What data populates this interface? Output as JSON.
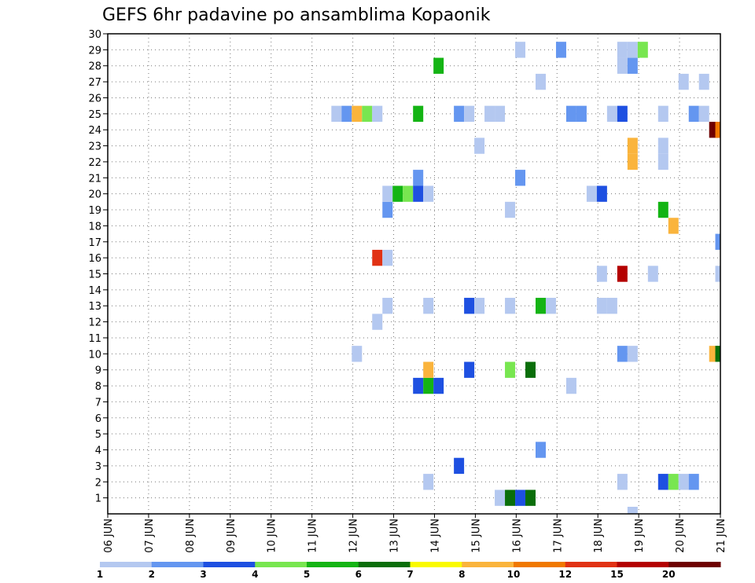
{
  "chart_data": {
    "type": "heatmap",
    "title": "GEFS 6hr padavine po ansamblima Kopaonik",
    "xlabel": "",
    "ylabel": "",
    "x_tick_labels": [
      "06 JUN",
      "07 JUN",
      "08 JUN",
      "09 JUN",
      "10 JUN",
      "11 JUN",
      "12 JUN",
      "13 JUN",
      "14 JUN",
      "15 JUN",
      "16 JUN",
      "17 JUN",
      "18 JUN",
      "19 JUN",
      "20 JUN",
      "21 JUN"
    ],
    "y_tick_labels": [
      "1",
      "2",
      "3",
      "4",
      "5",
      "6",
      "7",
      "8",
      "9",
      "10",
      "11",
      "12",
      "13",
      "14",
      "15",
      "16",
      "17",
      "18",
      "19",
      "20",
      "21",
      "22",
      "23",
      "24",
      "25",
      "26",
      "27",
      "28",
      "29",
      "30"
    ],
    "xlim": [
      0,
      15
    ],
    "ylim": [
      0,
      30
    ],
    "grid": true,
    "legend": {
      "placement": "bottom",
      "thresholds": [
        "1",
        "2",
        "3",
        "4",
        "5",
        "6",
        "7",
        "8",
        "10",
        "12",
        "15",
        "20"
      ],
      "colors": [
        "#b4c8f0",
        "#6496f0",
        "#1e50e1",
        "#78e650",
        "#14b414",
        "#0a6e0a",
        "#fafa00",
        "#fab43c",
        "#f07800",
        "#e13214",
        "#b40000",
        "#6e0000"
      ]
    },
    "cells": [
      {
        "member": 1,
        "t": 9.6,
        "v": 1
      },
      {
        "member": 1,
        "t": 9.85,
        "v": 6
      },
      {
        "member": 1,
        "t": 10.1,
        "v": 3
      },
      {
        "member": 1,
        "t": 10.35,
        "v": 6
      },
      {
        "member": 2,
        "t": 7.85,
        "v": 1
      },
      {
        "member": 2,
        "t": 12.6,
        "v": 1
      },
      {
        "member": 2,
        "t": 13.6,
        "v": 3
      },
      {
        "member": 2,
        "t": 13.85,
        "v": 4
      },
      {
        "member": 2,
        "t": 14.1,
        "v": 1
      },
      {
        "member": 2,
        "t": 14.35,
        "v": 2
      },
      {
        "member": 3,
        "t": 8.6,
        "v": 3
      },
      {
        "member": 4,
        "t": 10.6,
        "v": 2
      },
      {
        "member": 8,
        "t": 7.6,
        "v": 3
      },
      {
        "member": 8,
        "t": 7.85,
        "v": 5
      },
      {
        "member": 8,
        "t": 8.1,
        "v": 3
      },
      {
        "member": 8,
        "t": 11.35,
        "v": 1
      },
      {
        "member": 9,
        "t": 7.85,
        "v": 8
      },
      {
        "member": 9,
        "t": 8.85,
        "v": 3
      },
      {
        "member": 9,
        "t": 9.85,
        "v": 4
      },
      {
        "member": 9,
        "t": 10.35,
        "v": 6
      },
      {
        "member": 10,
        "t": 6.1,
        "v": 1
      },
      {
        "member": 10,
        "t": 12.6,
        "v": 2
      },
      {
        "member": 10,
        "t": 12.85,
        "v": 1
      },
      {
        "member": 10,
        "t": 14.85,
        "v": 8
      },
      {
        "member": 10,
        "t": 15.0,
        "v": 6
      },
      {
        "member": 12,
        "t": 6.6,
        "v": 1
      },
      {
        "member": 13,
        "t": 6.85,
        "v": 1
      },
      {
        "member": 13,
        "t": 7.85,
        "v": 1
      },
      {
        "member": 13,
        "t": 8.85,
        "v": 3
      },
      {
        "member": 13,
        "t": 9.1,
        "v": 1
      },
      {
        "member": 13,
        "t": 9.85,
        "v": 1
      },
      {
        "member": 13,
        "t": 10.6,
        "v": 5
      },
      {
        "member": 13,
        "t": 10.85,
        "v": 1
      },
      {
        "member": 13,
        "t": 12.1,
        "v": 1
      },
      {
        "member": 13,
        "t": 12.35,
        "v": 1
      },
      {
        "member": 15,
        "t": 12.1,
        "v": 1
      },
      {
        "member": 15,
        "t": 12.6,
        "v": 15
      },
      {
        "member": 15,
        "t": 13.35,
        "v": 1
      },
      {
        "member": 15,
        "t": 15.0,
        "v": 1
      },
      {
        "member": 16,
        "t": 6.6,
        "v": 12
      },
      {
        "member": 16,
        "t": 6.85,
        "v": 1
      },
      {
        "member": 17,
        "t": 15.0,
        "v": 2
      },
      {
        "member": 18,
        "t": 13.85,
        "v": 8
      },
      {
        "member": 19,
        "t": 6.85,
        "v": 2
      },
      {
        "member": 19,
        "t": 9.85,
        "v": 1
      },
      {
        "member": 19,
        "t": 13.6,
        "v": 5
      },
      {
        "member": 20,
        "t": 6.85,
        "v": 1
      },
      {
        "member": 20,
        "t": 7.1,
        "v": 5
      },
      {
        "member": 20,
        "t": 7.35,
        "v": 4
      },
      {
        "member": 20,
        "t": 7.6,
        "v": 3
      },
      {
        "member": 20,
        "t": 7.85,
        "v": 1
      },
      {
        "member": 20,
        "t": 11.85,
        "v": 1
      },
      {
        "member": 20,
        "t": 12.1,
        "v": 3
      },
      {
        "member": 21,
        "t": 7.6,
        "v": 2
      },
      {
        "member": 21,
        "t": 10.1,
        "v": 2
      },
      {
        "member": 22,
        "t": 12.85,
        "v": 8
      },
      {
        "member": 22,
        "t": 13.6,
        "v": 1
      },
      {
        "member": 23,
        "t": 9.1,
        "v": 1
      },
      {
        "member": 23,
        "t": 12.85,
        "v": 8
      },
      {
        "member": 23,
        "t": 13.6,
        "v": 1
      },
      {
        "member": 24,
        "t": 14.85,
        "v": 20
      },
      {
        "member": 24,
        "t": 15.0,
        "v": 10
      },
      {
        "member": 25,
        "t": 5.6,
        "v": 1
      },
      {
        "member": 25,
        "t": 5.85,
        "v": 2
      },
      {
        "member": 25,
        "t": 6.1,
        "v": 8
      },
      {
        "member": 25,
        "t": 6.35,
        "v": 4
      },
      {
        "member": 25,
        "t": 6.6,
        "v": 1
      },
      {
        "member": 25,
        "t": 7.6,
        "v": 5
      },
      {
        "member": 25,
        "t": 8.6,
        "v": 2
      },
      {
        "member": 25,
        "t": 8.85,
        "v": 1
      },
      {
        "member": 25,
        "t": 9.35,
        "v": 1
      },
      {
        "member": 25,
        "t": 9.6,
        "v": 1
      },
      {
        "member": 25,
        "t": 11.35,
        "v": 2
      },
      {
        "member": 25,
        "t": 11.6,
        "v": 2
      },
      {
        "member": 25,
        "t": 12.35,
        "v": 1
      },
      {
        "member": 25,
        "t": 12.6,
        "v": 3
      },
      {
        "member": 25,
        "t": 13.6,
        "v": 1
      },
      {
        "member": 25,
        "t": 14.35,
        "v": 2
      },
      {
        "member": 25,
        "t": 14.6,
        "v": 1
      },
      {
        "member": 27,
        "t": 10.6,
        "v": 1
      },
      {
        "member": 27,
        "t": 14.1,
        "v": 1
      },
      {
        "member": 27,
        "t": 14.6,
        "v": 1
      },
      {
        "member": 28,
        "t": 8.1,
        "v": 5
      },
      {
        "member": 28,
        "t": 12.6,
        "v": 1
      },
      {
        "member": 28,
        "t": 12.85,
        "v": 2
      },
      {
        "member": 29,
        "t": 10.1,
        "v": 1
      },
      {
        "member": 29,
        "t": 11.1,
        "v": 2
      },
      {
        "member": 29,
        "t": 12.6,
        "v": 1
      },
      {
        "member": 29,
        "t": 12.85,
        "v": 1
      },
      {
        "member": 29,
        "t": 13.1,
        "v": 4
      }
    ],
    "below_axis_cells": [
      {
        "t": 12.85,
        "v": 1
      }
    ]
  }
}
